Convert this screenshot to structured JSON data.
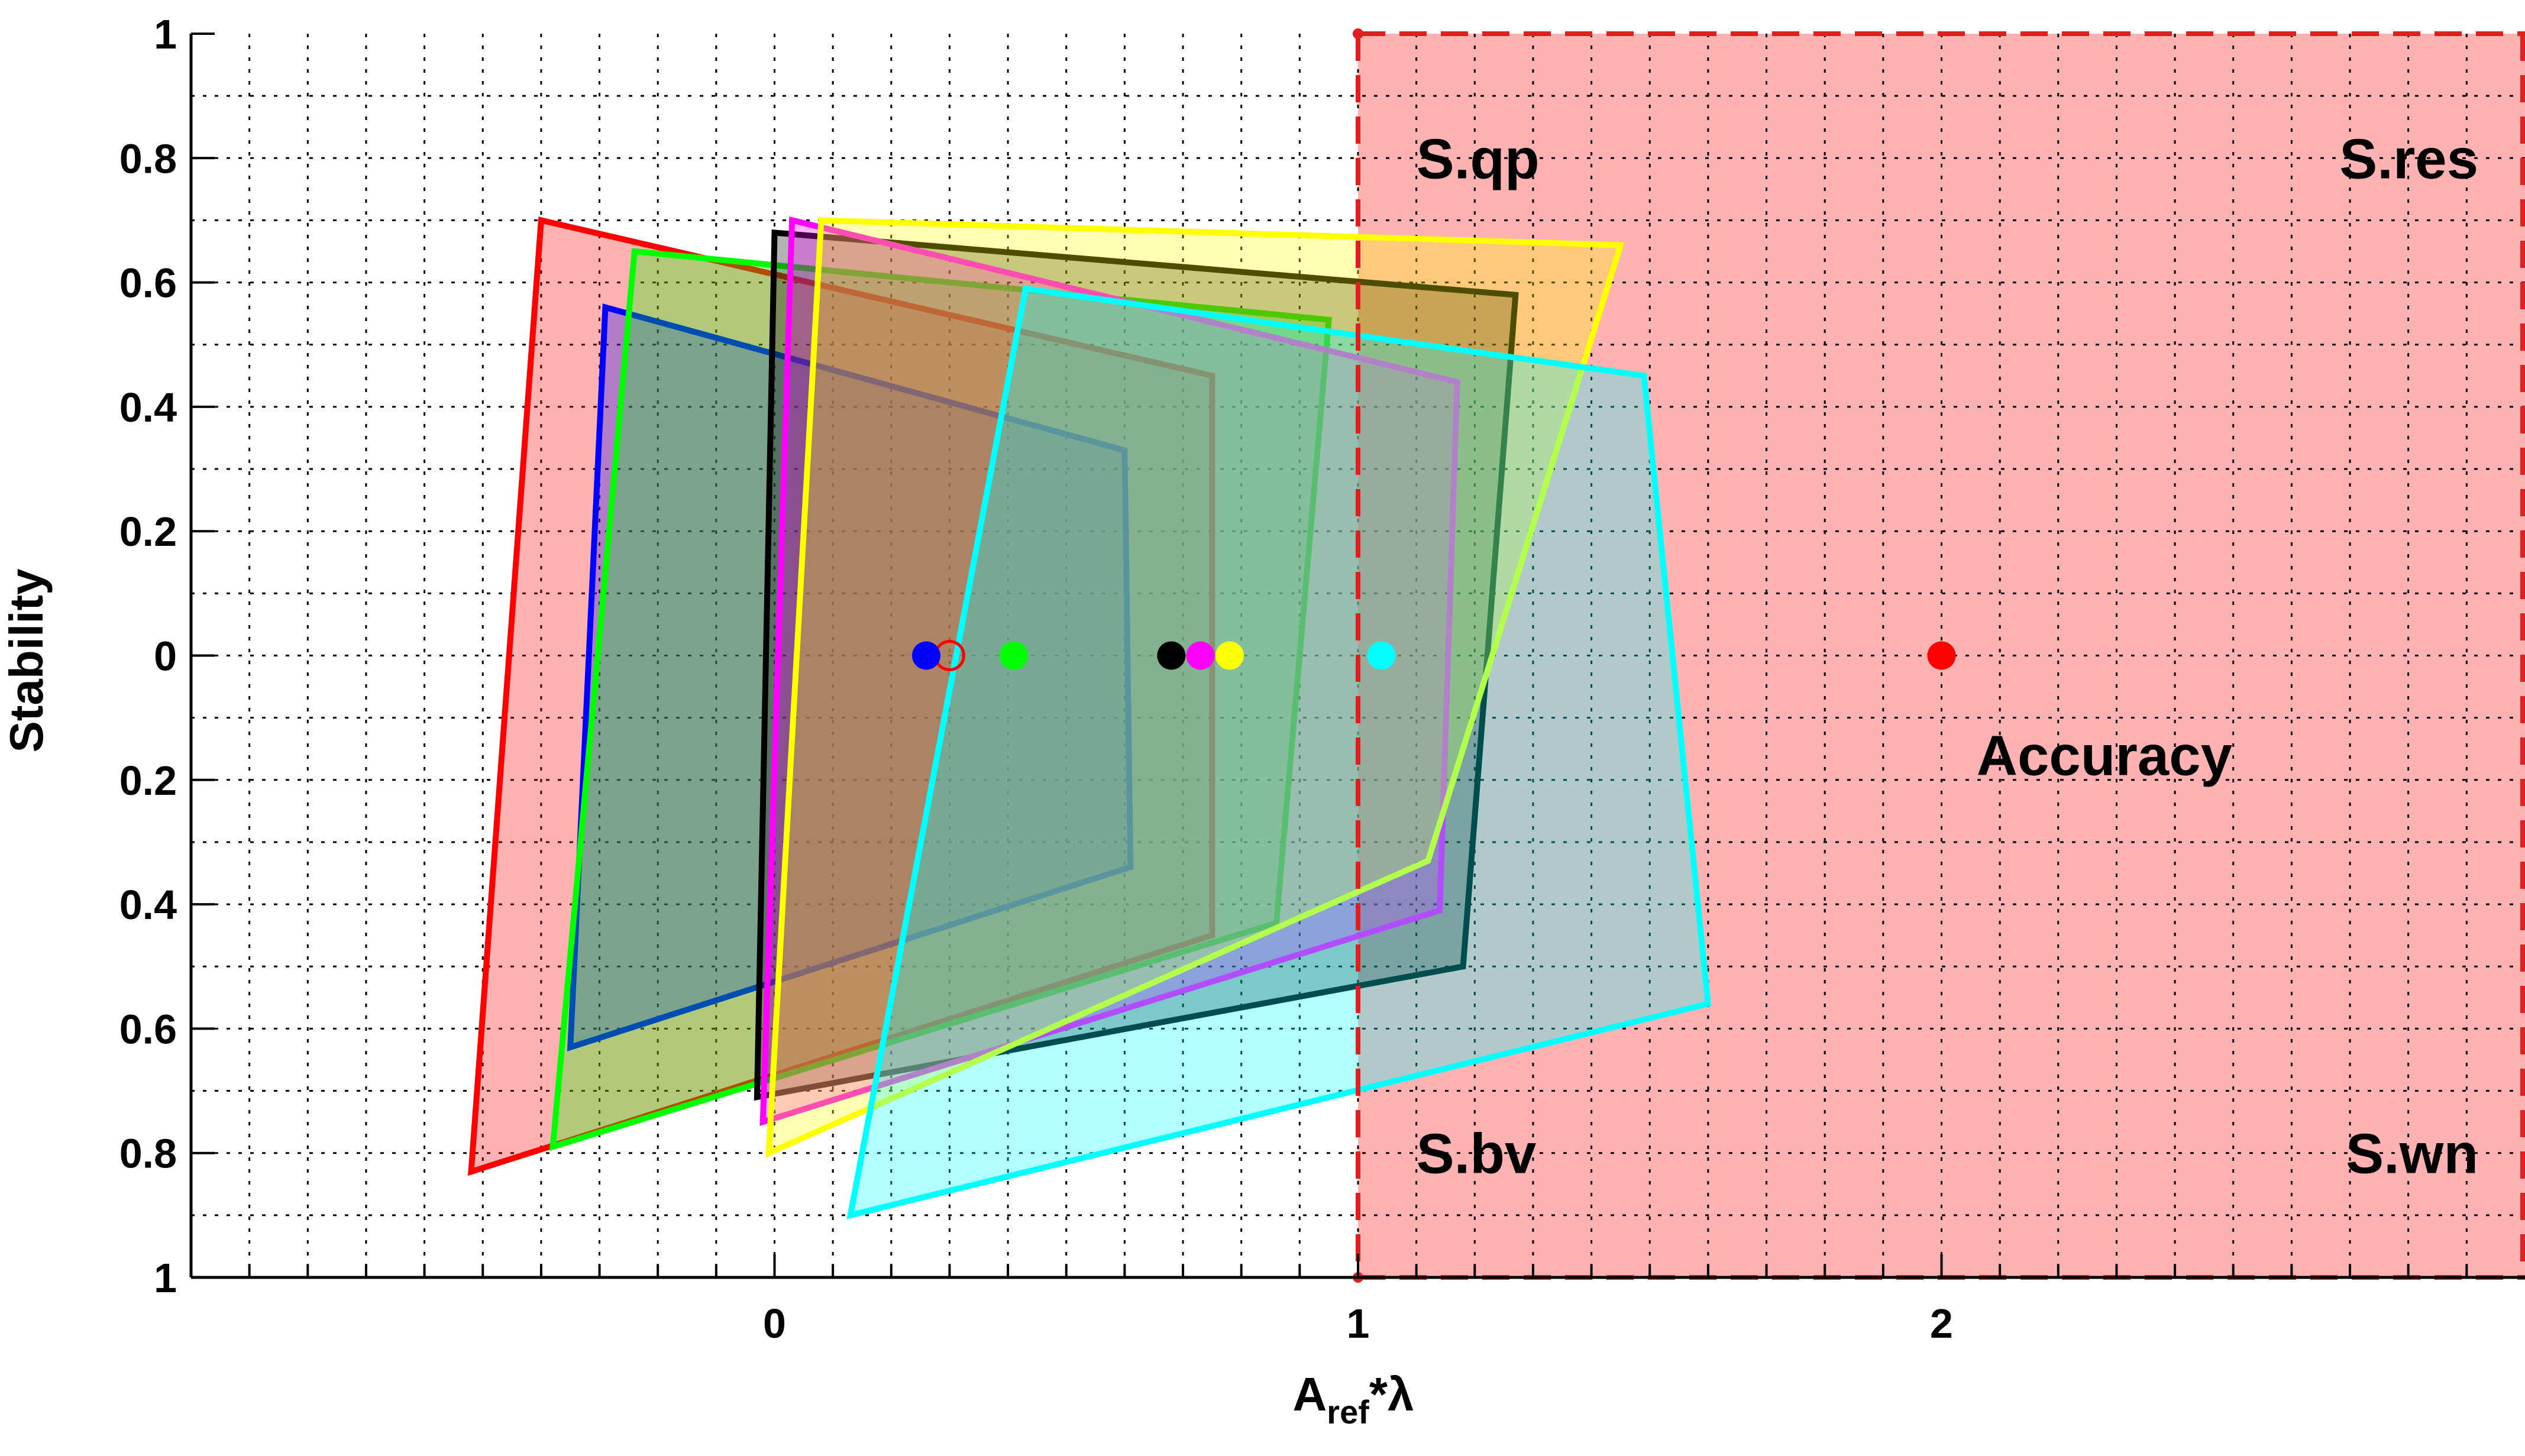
{
  "chart_data": {
    "type": "scatter",
    "title": "",
    "xlabel_main": "A",
    "xlabel_sub": "ref",
    "xlabel_tail": "*λ",
    "ylabel": "Stability",
    "xlim": [
      -1,
      3
    ],
    "ylim": [
      -1,
      1
    ],
    "x_ticks": [
      {
        "value": 0,
        "label": "0"
      },
      {
        "value": 1,
        "label": "1"
      },
      {
        "value": 2,
        "label": "2"
      }
    ],
    "y_ticks": [
      {
        "value": 1,
        "label": "1"
      },
      {
        "value": 0.8,
        "label": "0.8"
      },
      {
        "value": 0.6,
        "label": "0.6"
      },
      {
        "value": 0.4,
        "label": "0.4"
      },
      {
        "value": 0.2,
        "label": "0.2"
      },
      {
        "value": 0,
        "label": "0"
      },
      {
        "value": -0.2,
        "label": "0.2"
      },
      {
        "value": -0.4,
        "label": "0.4"
      },
      {
        "value": -0.6,
        "label": "0.6"
      },
      {
        "value": -0.8,
        "label": "0.8"
      },
      {
        "value": -1,
        "label": "1"
      }
    ],
    "grid": true,
    "grid_x_step": 0.1,
    "grid_y_step": 0.1,
    "region": {
      "x_min": 1,
      "x_max": 3,
      "y_min": -1,
      "y_max": 1,
      "color": "#ff0000",
      "border_color": "#e02020"
    },
    "region_labels": [
      {
        "text": "S.qp",
        "x": 1.1,
        "y": 0.8
      },
      {
        "text": "S.res",
        "x": 2.92,
        "y": 0.8
      },
      {
        "text": "S.bv",
        "x": 1.1,
        "y": -0.8
      },
      {
        "text": "S.wn",
        "x": 2.92,
        "y": -0.8
      },
      {
        "text": "Accuracy",
        "x": 2.06,
        "y": -0.16
      }
    ],
    "series": [
      {
        "color": "#ff0000",
        "points": [
          [
            -0.52,
            -0.83
          ],
          [
            -0.4,
            0.7
          ],
          [
            0.75,
            0.45
          ],
          [
            0.75,
            -0.45
          ]
        ],
        "marker": [
          0.3,
          0
        ],
        "marker_style": "open"
      },
      {
        "color": "#0000ff",
        "points": [
          [
            -0.35,
            -0.63
          ],
          [
            -0.29,
            0.56
          ],
          [
            0.6,
            0.33
          ],
          [
            0.61,
            -0.34
          ]
        ],
        "marker": [
          0.26,
          0
        ]
      },
      {
        "color": "#00ff00",
        "points": [
          [
            -0.38,
            -0.79
          ],
          [
            -0.24,
            0.65
          ],
          [
            0.95,
            0.54
          ],
          [
            0.86,
            -0.43
          ]
        ],
        "marker": [
          0.41,
          0
        ]
      },
      {
        "color": "#000000",
        "points": [
          [
            -0.03,
            -0.71
          ],
          [
            0,
            0.68
          ],
          [
            1.27,
            0.58
          ],
          [
            1.18,
            -0.5
          ]
        ],
        "marker": [
          0.68,
          0
        ]
      },
      {
        "color": "#ff00ff",
        "points": [
          [
            -0.02,
            -0.75
          ],
          [
            0.03,
            0.7
          ],
          [
            1.17,
            0.44
          ],
          [
            1.14,
            -0.41
          ]
        ],
        "marker": [
          0.73,
          0
        ]
      },
      {
        "color": "#ffff00",
        "points": [
          [
            -0.01,
            -0.8
          ],
          [
            0.08,
            0.7
          ],
          [
            1.45,
            0.66
          ],
          [
            1.12,
            -0.33
          ]
        ],
        "marker": [
          0.78,
          0
        ]
      },
      {
        "color": "#00ffff",
        "points": [
          [
            0.13,
            -0.9
          ],
          [
            0.43,
            0.59
          ],
          [
            1.49,
            0.45
          ],
          [
            1.6,
            -0.56
          ]
        ],
        "marker": [
          1.04,
          0
        ]
      }
    ],
    "extra_markers": [
      {
        "color": "#ff0000",
        "x": 2,
        "y": 0
      }
    ]
  }
}
